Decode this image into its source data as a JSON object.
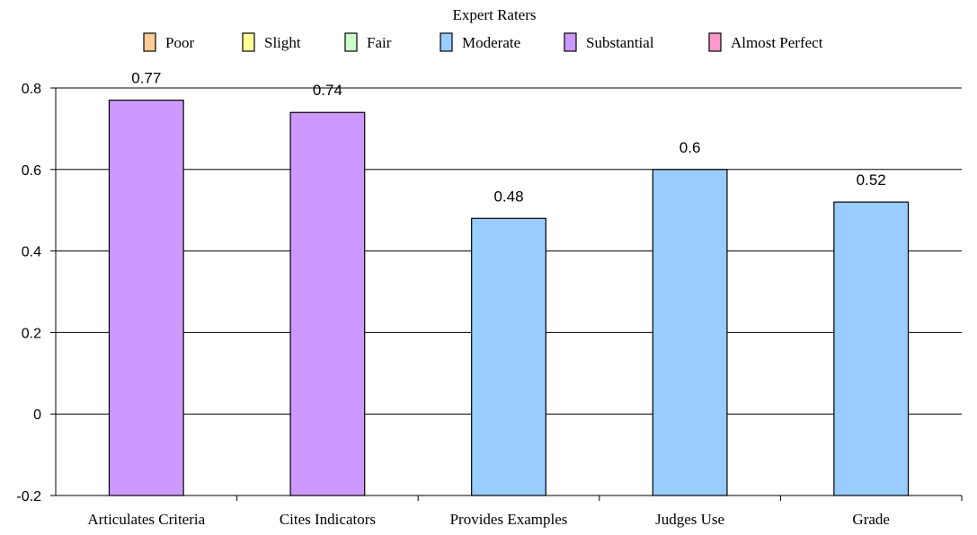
{
  "chart_data": {
    "type": "bar",
    "legend_title": "Expert Raters",
    "legend_placement": "top-center",
    "legend": [
      {
        "label": "Poor",
        "color": "#FFCC99"
      },
      {
        "label": "Slight",
        "color": "#FFFF99"
      },
      {
        "label": "Fair",
        "color": "#CCFFCC"
      },
      {
        "label": "Moderate",
        "color": "#99CCFF"
      },
      {
        "label": "Substantial",
        "color": "#CC99FF"
      },
      {
        "label": "Almost Perfect",
        "color": "#FF99CC"
      }
    ],
    "categories": [
      "Articulates Criteria",
      "Cites Indicators",
      "Provides Examples",
      "Judges Use",
      "Grade"
    ],
    "values": [
      0.77,
      0.74,
      0.48,
      0.6,
      0.52
    ],
    "value_labels": [
      "0.77",
      "0.74",
      "0.48",
      "0.6",
      "0.52"
    ],
    "bar_levels": [
      "Substantial",
      "Substantial",
      "Moderate",
      "Moderate",
      "Moderate"
    ],
    "ylim": [
      -0.2,
      0.8
    ],
    "yticks": [
      -0.2,
      0,
      0.2,
      0.4,
      0.6,
      0.8
    ],
    "ytick_labels": [
      "-0.2",
      "0",
      "0.2",
      "0.4",
      "0.6",
      "0.8"
    ],
    "grid": true,
    "xlabel": "",
    "ylabel": ""
  }
}
